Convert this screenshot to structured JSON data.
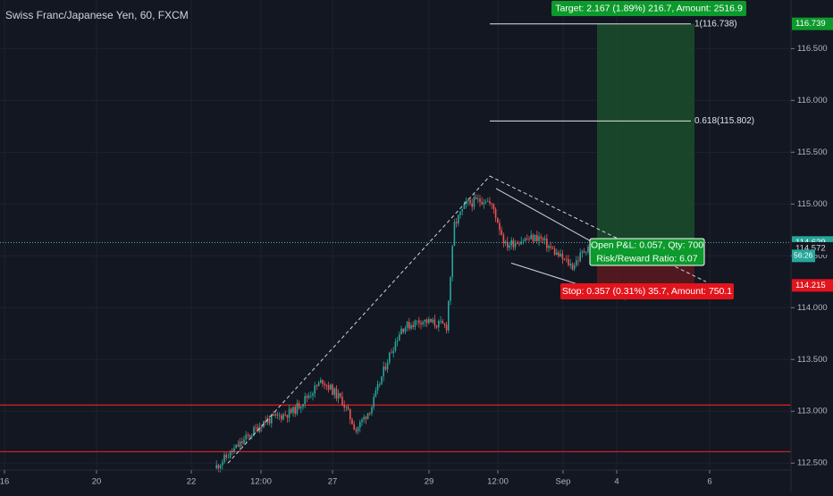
{
  "header": {
    "title": "Swiss Franc/Japanese Yen, 60, FXCM"
  },
  "colors": {
    "background": "#131722",
    "up": "#26a69a",
    "down": "#ef5350",
    "grid": "#1e222d",
    "axis_text": "#b2b5be",
    "support_line": "#e02020",
    "profit_zone": "#1b4d2b",
    "loss_zone": "#5a1a1f",
    "tag_green": "#0c9a2c",
    "tag_red": "#e3141c",
    "price_line": "#4db6ac"
  },
  "chart_data": {
    "type": "candlestick",
    "title": "Swiss Franc/Japanese Yen, 60, FXCM",
    "symbol": "CHFJPY",
    "interval": "60",
    "source": "FXCM",
    "ylim": [
      112.45,
      116.9
    ],
    "y_ticks": [
      "116.500",
      "116.000",
      "115.500",
      "115.000",
      "114.500",
      "114.000",
      "113.500",
      "113.000",
      "112.500"
    ],
    "x_ticks": [
      "16",
      "20",
      "22",
      "12:00",
      "27",
      "29",
      "12:00",
      "Sep",
      "4",
      "6"
    ],
    "price_labels": [
      {
        "text": "116.739",
        "value": 116.739,
        "style": "green"
      },
      {
        "text": "114.629",
        "value": 114.629,
        "style": "teal"
      },
      {
        "text": "114.572",
        "value": 114.572,
        "style": "dark"
      },
      {
        "text": "114.215",
        "value": 114.215,
        "style": "red"
      }
    ],
    "countdown": "56:26",
    "horizontal_levels": [
      113.06,
      112.61
    ],
    "fib_levels": [
      {
        "label": "1(116.738)",
        "value": 116.738
      },
      {
        "label": "0.618(115.802)",
        "value": 115.802
      }
    ],
    "position": {
      "entry": 114.572,
      "target": 116.739,
      "stop": 114.215,
      "target_text": "Target: 2.167 (1.89%) 216.7, Amount: 2516.9",
      "open_text": "Open P&L: 0.057, Qty: 700",
      "ratio_text": "Risk/Reward Ratio: 6.07",
      "stop_text": "Stop: 0.357 (0.31%) 35.7, Amount: 750.1"
    },
    "anchors": [
      [
        0,
        112.45
      ],
      [
        25,
        112.9
      ],
      [
        40,
        113.0
      ],
      [
        55,
        113.3
      ],
      [
        65,
        113.1
      ],
      [
        72,
        112.82
      ],
      [
        80,
        113.05
      ],
      [
        88,
        113.5
      ],
      [
        95,
        113.8
      ],
      [
        105,
        113.88
      ],
      [
        118,
        113.82
      ],
      [
        122,
        114.8
      ],
      [
        128,
        115.0
      ],
      [
        138,
        115.05
      ],
      [
        142,
        114.95
      ],
      [
        148,
        114.6
      ],
      [
        155,
        114.65
      ],
      [
        165,
        114.68
      ],
      [
        175,
        114.5
      ],
      [
        182,
        114.4
      ],
      [
        190,
        114.6
      ]
    ]
  }
}
